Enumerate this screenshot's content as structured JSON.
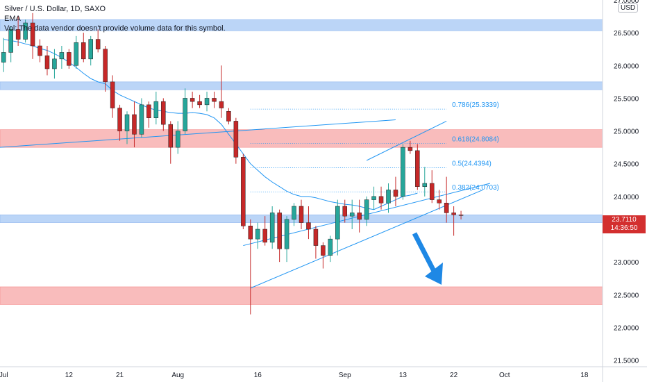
{
  "legend": {
    "symbol": "Silver / U.S. Dollar, 1D, SAXO",
    "ema": "EMA",
    "vol": "Vol: The data vendor doesn't provide volume data for this symbol."
  },
  "currency": "USD",
  "last_price": {
    "value": "23.7110",
    "countdown": "14:36:50"
  },
  "colors": {
    "up": "#26a69a",
    "down": "#c62828",
    "ema": "#2196f3",
    "fib": "#2196f3",
    "zone_blue": "#bbd5f7",
    "zone_red": "#f9bcbc",
    "arrow": "#1e88e5"
  },
  "chart_data": {
    "type": "candlestick",
    "ylim": [
      21.4,
      27.0
    ],
    "yticks": [
      "21.5000",
      "22.0000",
      "22.5000",
      "23.0000",
      "23.5000",
      "24.0000",
      "24.5000",
      "25.0000",
      "25.5000",
      "26.0000",
      "26.5000",
      "27.0000"
    ],
    "ytick_values": [
      21.5,
      22.0,
      22.5,
      23.0,
      23.5,
      24.0,
      24.5,
      25.0,
      25.5,
      26.0,
      26.5,
      27.0
    ],
    "xticks": [
      {
        "label": "Jul",
        "bar": -2
      },
      {
        "label": "12",
        "bar": 7
      },
      {
        "label": "21",
        "bar": 14
      },
      {
        "label": "Aug",
        "bar": 22
      },
      {
        "label": "16",
        "bar": 33
      },
      {
        "label": "Sep",
        "bar": 45
      },
      {
        "label": "13",
        "bar": 53
      },
      {
        "label": "22",
        "bar": 60
      },
      {
        "label": "Oct",
        "bar": 67
      },
      {
        "label": "18",
        "bar": 78
      }
    ],
    "xlim": [
      -2.5,
      80.5
    ],
    "candles": [
      [
        26.05,
        26.42,
        25.9,
        26.2
      ],
      [
        26.2,
        26.6,
        26.05,
        26.55
      ],
      [
        26.55,
        26.75,
        26.3,
        26.4
      ],
      [
        26.4,
        26.7,
        26.35,
        26.65
      ],
      [
        26.65,
        26.8,
        26.1,
        26.3
      ],
      [
        26.3,
        26.4,
        26.05,
        26.15
      ],
      [
        26.15,
        26.3,
        25.85,
        25.95
      ],
      [
        25.95,
        26.25,
        25.8,
        26.1
      ],
      [
        26.1,
        26.3,
        25.95,
        26.2
      ],
      [
        26.2,
        26.25,
        25.95,
        26.0
      ],
      [
        26.0,
        26.45,
        25.95,
        26.35
      ],
      [
        26.35,
        26.5,
        26.05,
        26.1
      ],
      [
        26.1,
        26.45,
        26.0,
        26.4
      ],
      [
        26.4,
        26.55,
        26.2,
        26.25
      ],
      [
        26.25,
        26.3,
        25.6,
        25.75
      ],
      [
        25.75,
        25.85,
        25.2,
        25.35
      ],
      [
        25.35,
        25.4,
        24.85,
        25.0
      ],
      [
        25.0,
        25.3,
        24.8,
        25.25
      ],
      [
        25.25,
        25.45,
        24.75,
        24.95
      ],
      [
        24.95,
        25.5,
        24.9,
        25.4
      ],
      [
        25.4,
        25.45,
        25.05,
        25.2
      ],
      [
        25.2,
        25.6,
        25.1,
        25.45
      ],
      [
        25.45,
        25.5,
        25.0,
        25.1
      ],
      [
        25.1,
        25.15,
        24.5,
        24.75
      ],
      [
        24.75,
        25.15,
        24.65,
        25.0
      ],
      [
        25.0,
        25.65,
        24.95,
        25.5
      ],
      [
        25.5,
        25.6,
        25.35,
        25.45
      ],
      [
        25.45,
        25.55,
        25.35,
        25.4
      ],
      [
        25.4,
        25.6,
        25.3,
        25.5
      ],
      [
        25.5,
        25.6,
        25.35,
        25.45
      ],
      [
        25.45,
        26.0,
        25.2,
        25.35
      ],
      [
        25.3,
        25.35,
        25.1,
        25.15
      ],
      [
        25.15,
        25.2,
        24.5,
        24.6
      ],
      [
        24.6,
        24.65,
        23.5,
        23.55
      ],
      [
        23.55,
        23.65,
        22.2,
        23.35
      ],
      [
        23.35,
        23.6,
        23.2,
        23.5
      ],
      [
        23.5,
        23.7,
        23.25,
        23.3
      ],
      [
        23.3,
        23.85,
        23.2,
        23.75
      ],
      [
        23.75,
        23.8,
        23.0,
        23.2
      ],
      [
        23.2,
        23.7,
        23.0,
        23.65
      ],
      [
        23.65,
        23.9,
        23.55,
        23.85
      ],
      [
        23.85,
        23.95,
        23.5,
        23.6
      ],
      [
        23.6,
        23.85,
        23.35,
        23.5
      ],
      [
        23.5,
        23.55,
        23.05,
        23.25
      ],
      [
        23.25,
        23.3,
        22.9,
        23.1
      ],
      [
        23.1,
        23.4,
        23.0,
        23.35
      ],
      [
        23.35,
        23.95,
        23.1,
        23.85
      ],
      [
        23.85,
        23.95,
        23.6,
        23.7
      ],
      [
        23.7,
        23.95,
        23.5,
        23.75
      ],
      [
        23.75,
        23.95,
        23.45,
        23.65
      ],
      [
        23.65,
        24.0,
        23.55,
        23.95
      ],
      [
        23.95,
        24.15,
        23.8,
        24.0
      ],
      [
        24.0,
        24.15,
        23.8,
        23.9
      ],
      [
        23.9,
        24.2,
        23.75,
        24.1
      ],
      [
        24.1,
        24.3,
        23.85,
        24.0
      ],
      [
        24.0,
        24.8,
        23.95,
        24.75
      ],
      [
        24.75,
        24.85,
        24.65,
        24.7
      ],
      [
        24.7,
        24.8,
        24.1,
        24.15
      ],
      [
        24.15,
        24.45,
        24.0,
        24.2
      ],
      [
        24.2,
        24.4,
        23.9,
        23.95
      ],
      [
        23.95,
        24.1,
        23.8,
        23.9
      ],
      [
        23.9,
        24.3,
        23.6,
        23.75
      ],
      [
        23.75,
        23.85,
        23.4,
        23.72
      ],
      [
        23.72,
        23.78,
        23.65,
        23.71
      ]
    ],
    "ema": [
      26.4,
      26.38,
      26.36,
      26.33,
      26.3,
      26.26,
      26.23,
      26.18,
      26.12,
      26.05,
      25.97,
      25.88,
      25.8,
      25.75,
      25.72,
      25.62,
      25.55,
      25.5,
      25.45,
      25.4,
      25.35,
      25.32,
      25.3,
      25.28,
      25.27,
      25.27,
      25.28,
      25.27,
      25.25,
      25.2,
      25.1,
      24.95,
      24.8,
      24.65,
      24.5,
      24.4,
      24.3,
      24.22,
      24.15,
      24.08,
      24.03,
      24.0,
      24.0,
      23.98,
      23.95,
      23.92,
      23.9,
      23.88,
      23.87,
      23.85,
      23.82,
      23.8,
      23.85,
      23.9,
      23.95,
      24.0,
      24.02,
      24.05
    ],
    "zones": [
      {
        "color": "blue",
        "y1": 26.53,
        "y2": 26.7,
        "x_from": "start"
      },
      {
        "color": "blue",
        "y1": 25.63,
        "y2": 25.75,
        "x_from": "start"
      },
      {
        "color": "red",
        "y1": 24.75,
        "y2": 25.02,
        "x_from": "start"
      },
      {
        "color": "blue",
        "y1": 23.6,
        "y2": 23.72,
        "x_from": "start"
      },
      {
        "color": "red",
        "y1": 22.35,
        "y2": 22.62,
        "x_from": "start"
      }
    ],
    "fib_levels": [
      {
        "label": "0.786(25.3339)",
        "value": 25.3339
      },
      {
        "label": "0.618(24.8084)",
        "value": 24.8084
      },
      {
        "label": "0.5(24.4394)",
        "value": 24.4394
      },
      {
        "label": "0.382(24.0703)",
        "value": 24.0703
      }
    ],
    "trendlines": [
      {
        "from": [
          -2.5,
          24.75
        ],
        "to": [
          52,
          25.17
        ]
      },
      {
        "from": [
          31,
          23.25
        ],
        "to": [
          65,
          24.2
        ]
      },
      {
        "from": [
          32,
          22.6
        ],
        "to": [
          64,
          24.1
        ]
      },
      {
        "from": [
          48,
          24.55
        ],
        "to": [
          59,
          25.15
        ]
      }
    ]
  }
}
